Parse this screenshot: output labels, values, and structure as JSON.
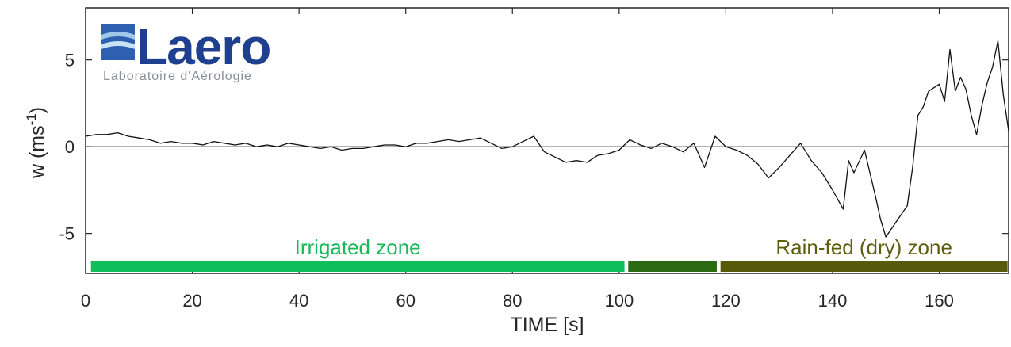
{
  "logo": {
    "name": "Laero",
    "subtitle": "Laboratoire d'Aérologie"
  },
  "chart_data": {
    "type": "line",
    "xlabel": "TIME [s]",
    "ylabel": "w (ms",
    "ylabel_sup": "-1",
    "ylabel_close": ")",
    "xlim": [
      0,
      173
    ],
    "ylim": [
      -7.3,
      8
    ],
    "x_ticks": [
      0,
      20,
      40,
      60,
      80,
      100,
      120,
      140,
      160
    ],
    "y_ticks": [
      5,
      0,
      -5
    ],
    "zero_line": true,
    "grid": false,
    "series": [
      {
        "color": "#111111",
        "x": [
          0,
          2,
          4,
          6,
          8,
          10,
          12,
          14,
          16,
          18,
          20,
          22,
          24,
          26,
          28,
          30,
          32,
          34,
          36,
          38,
          40,
          42,
          44,
          46,
          48,
          50,
          52,
          54,
          56,
          58,
          60,
          62,
          64,
          66,
          68,
          70,
          72,
          74,
          76,
          78,
          80,
          82,
          84,
          86,
          88,
          90,
          92,
          94,
          96,
          98,
          100,
          102,
          104,
          106,
          108,
          110,
          112,
          114,
          116,
          118,
          120,
          122,
          124,
          126,
          128,
          130,
          132,
          134,
          136,
          138,
          140,
          142,
          143,
          144,
          146,
          148,
          149,
          150,
          152,
          154,
          155,
          156,
          157,
          158,
          160,
          161,
          162,
          163,
          164,
          165,
          166,
          167,
          168,
          169,
          170,
          171,
          172,
          173
        ],
        "y": [
          0.6,
          0.7,
          0.7,
          0.8,
          0.6,
          0.5,
          0.4,
          0.2,
          0.3,
          0.2,
          0.2,
          0.1,
          0.3,
          0.2,
          0.1,
          0.2,
          0.0,
          0.1,
          0.0,
          0.2,
          0.1,
          0.0,
          -0.1,
          0.0,
          -0.2,
          -0.1,
          -0.1,
          0.0,
          0.1,
          0.1,
          0.0,
          0.2,
          0.2,
          0.3,
          0.4,
          0.3,
          0.4,
          0.5,
          0.2,
          -0.1,
          0.0,
          0.3,
          0.6,
          -0.3,
          -0.6,
          -0.9,
          -0.8,
          -0.9,
          -0.5,
          -0.4,
          -0.2,
          0.4,
          0.1,
          -0.1,
          0.2,
          0.0,
          -0.3,
          0.2,
          -1.2,
          0.6,
          0.0,
          -0.2,
          -0.5,
          -1.0,
          -1.8,
          -1.2,
          -0.5,
          0.2,
          -0.8,
          -1.5,
          -2.5,
          -3.6,
          -0.8,
          -1.5,
          -0.2,
          -2.8,
          -4.2,
          -5.2,
          -4.3,
          -3.4,
          -1.2,
          1.8,
          2.3,
          3.2,
          3.6,
          2.6,
          5.6,
          3.2,
          4.0,
          3.3,
          1.8,
          0.7,
          2.4,
          3.7,
          4.6,
          6.1,
          3.0,
          0.9
        ]
      }
    ],
    "zones": [
      {
        "label": "Irrigated zone",
        "x_start": 1,
        "x_end": 101,
        "color": "#0dbe5a",
        "label_color": "#19b85b"
      },
      {
        "label": "",
        "x_start": 101.7,
        "x_end": 118.3,
        "color": "#2d6a14",
        "label_color": "#2d6a14"
      },
      {
        "label": "Rain-fed (dry) zone",
        "x_start": 119,
        "x_end": 172.8,
        "color": "#59590c",
        "label_color": "#5e5e10"
      }
    ]
  }
}
